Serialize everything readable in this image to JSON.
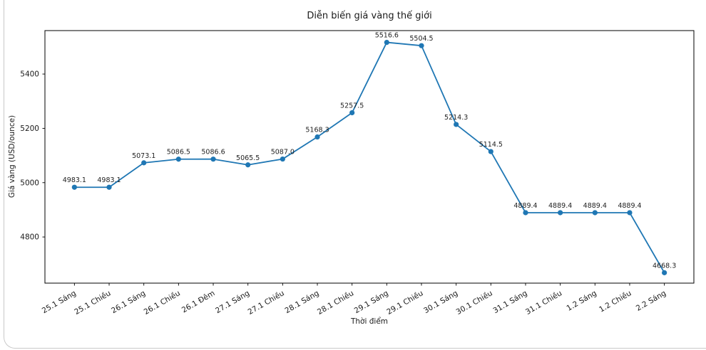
{
  "chart_data": {
    "type": "line",
    "title": "Diễn biến giá vàng thế giới",
    "xlabel": "Thời điểm",
    "ylabel": "Giá vàng (USD/ounce)",
    "categories": [
      "25.1 Sáng",
      "25.1 Chiều",
      "26.1 Sáng",
      "26.1 Chiều",
      "26.1 Đêm",
      "27.1 Sáng",
      "27.1 Chiều",
      "28.1 Sáng",
      "28.1 Chiều",
      "29.1 Sáng",
      "29.1 Chiều",
      "30.1 Sáng",
      "30.1 Chiều",
      "31.1 Sáng",
      "31.1 Chiều",
      "1.2 Sáng",
      "1.2 Chiều",
      "2.2 Sáng"
    ],
    "values": [
      4983.1,
      4983.1,
      5073.1,
      5086.5,
      5086.6,
      5065.5,
      5087.0,
      5168.3,
      5257.5,
      5516.6,
      5504.5,
      5214.3,
      5114.5,
      4889.4,
      4889.4,
      4889.4,
      4889.4,
      4668.3
    ],
    "point_labels": [
      "4983.1",
      "4983.1",
      "5073.1",
      "5086.5",
      "5086.6",
      "5065.5",
      "5087.0",
      "5168.3",
      "5257.5",
      "5516.6",
      "5504.5",
      "5214.3",
      "5114.5",
      "4889.4",
      "4889.4",
      "4889.4",
      "4889.4",
      "4668.3"
    ],
    "yticks": [
      4800,
      5000,
      5200,
      5400
    ],
    "ylim": [
      4630,
      5560
    ],
    "xlim": [
      -0.85,
      17.85
    ],
    "tick_label_rotation_deg": 30,
    "grid": false,
    "legend": null,
    "line_color": "#1f77b4",
    "marker": "circle",
    "point_labels_visible": true
  }
}
